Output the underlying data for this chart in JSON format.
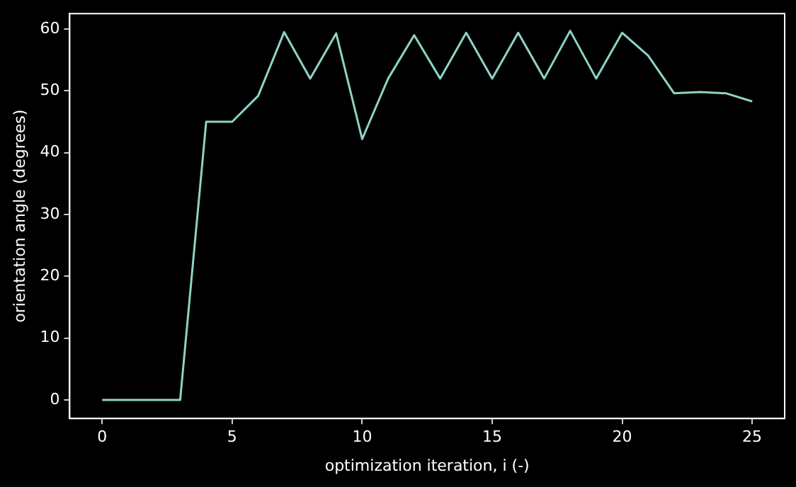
{
  "chart_data": {
    "type": "line",
    "xlabel": "optimization iteration, i (-)",
    "ylabel": "orientation angle (degrees)",
    "x": [
      0,
      1,
      2,
      3,
      4,
      5,
      6,
      7,
      8,
      9,
      10,
      11,
      12,
      13,
      14,
      15,
      16,
      17,
      18,
      19,
      20,
      21,
      22,
      23,
      24,
      25
    ],
    "series": [
      {
        "color": "#8dd3c7",
        "values": [
          0,
          0,
          0,
          0,
          45,
          45,
          49.2,
          59.5,
          52,
          59.3,
          42.2,
          52,
          59,
          52,
          59.4,
          52,
          59.4,
          52,
          59.7,
          52,
          59.4,
          55.7,
          49.6,
          49.8,
          49.6,
          48.3
        ]
      }
    ],
    "xlim": [
      -1.25,
      26.25
    ],
    "xticks": [
      0,
      5,
      10,
      15,
      20,
      25
    ],
    "ylim": [
      -3,
      62.5
    ],
    "yticks": [
      0,
      10,
      20,
      30,
      40,
      50,
      60
    ],
    "grid": false,
    "legend": false,
    "marker": "none",
    "line_style": "solid"
  }
}
